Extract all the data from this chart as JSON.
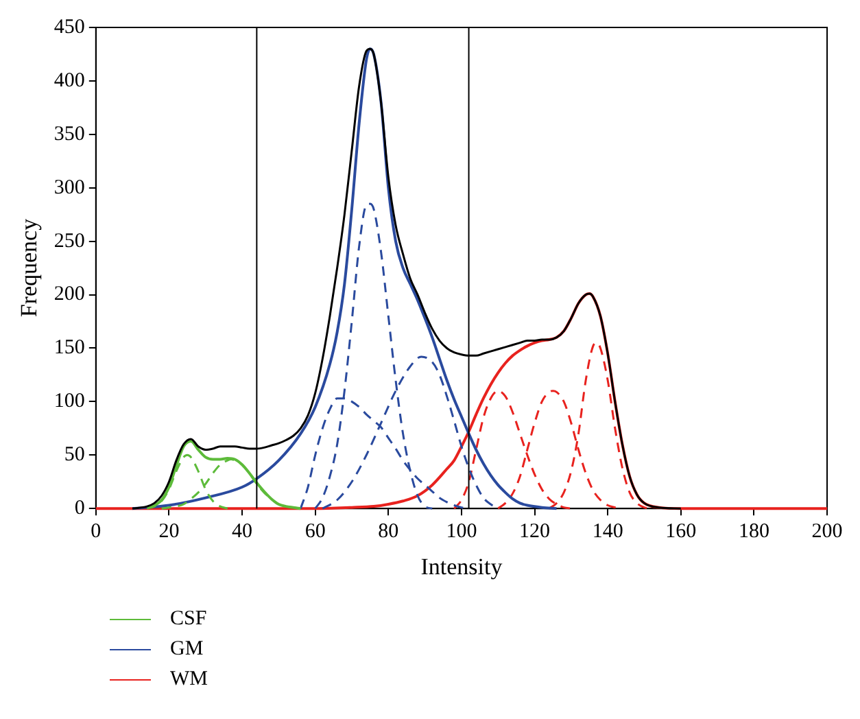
{
  "chart_data": {
    "type": "line",
    "xlabel": "Intensity",
    "ylabel": "Frequency",
    "xlim": [
      0,
      200
    ],
    "xticks": [
      0,
      20,
      40,
      60,
      80,
      100,
      120,
      140,
      160,
      180,
      200
    ],
    "ylim": [
      0,
      450
    ],
    "yticks": [
      0,
      50,
      100,
      150,
      200,
      250,
      300,
      350,
      400,
      450
    ],
    "grid": false,
    "legend": "bottom left",
    "marker": "none",
    "ref_lines": [
      {
        "axis": "x",
        "value": 44,
        "color": "#000000"
      },
      {
        "axis": "x",
        "value": 102,
        "color": "#000000"
      }
    ],
    "series": [
      {
        "color": "#000000",
        "line_style": "solid",
        "x": [
          10,
          14,
          16,
          18,
          20,
          22,
          24,
          26,
          28,
          30,
          32,
          34,
          36,
          38,
          40,
          42,
          44,
          46,
          48,
          50,
          52,
          54,
          56,
          58,
          60,
          62,
          64,
          66,
          68,
          70,
          72,
          74,
          75,
          76,
          78,
          80,
          82,
          84,
          86,
          88,
          90,
          92,
          94,
          96,
          98,
          100,
          102,
          104,
          106,
          108,
          110,
          112,
          114,
          116,
          118,
          120,
          122,
          124,
          126,
          128,
          130,
          132,
          134,
          135,
          136,
          138,
          140,
          142,
          144,
          146,
          148,
          150,
          154,
          160
        ],
        "values": [
          0,
          2,
          5,
          12,
          25,
          45,
          60,
          65,
          58,
          55,
          56,
          58,
          58,
          58,
          57,
          56,
          56,
          57,
          59,
          61,
          64,
          68,
          75,
          87,
          108,
          140,
          180,
          225,
          275,
          335,
          395,
          428,
          430,
          425,
          380,
          310,
          265,
          238,
          215,
          200,
          183,
          168,
          157,
          150,
          146,
          144,
          143,
          143,
          145,
          147,
          149,
          151,
          153,
          155,
          157,
          157,
          158,
          158,
          160,
          166,
          178,
          192,
          200,
          201,
          198,
          180,
          145,
          100,
          60,
          30,
          13,
          5,
          1,
          0
        ]
      },
      {
        "name": "CSF",
        "color": "#5dbb3a",
        "line_style": "solid",
        "x": [
          14,
          16,
          18,
          20,
          22,
          24,
          26,
          28,
          30,
          32,
          34,
          36,
          38,
          40,
          42,
          44,
          46,
          48,
          50,
          52,
          54,
          56
        ],
        "values": [
          1,
          3,
          8,
          20,
          40,
          58,
          63,
          55,
          48,
          46,
          46,
          47,
          46,
          41,
          33,
          24,
          16,
          9,
          4,
          2,
          1,
          0
        ]
      },
      {
        "color": "#5dbb3a",
        "line_style": "dashed",
        "x": [
          14,
          16,
          18,
          20,
          22,
          24,
          25,
          26,
          28,
          30,
          32,
          34,
          36
        ],
        "values": [
          0,
          2,
          7,
          18,
          35,
          48,
          50,
          48,
          35,
          18,
          7,
          2,
          0
        ]
      },
      {
        "color": "#5dbb3a",
        "line_style": "dashed",
        "x": [
          18,
          20,
          22,
          24,
          26,
          28,
          30,
          32,
          34,
          36,
          37,
          38,
          40,
          42,
          44,
          46,
          48,
          50,
          52,
          54,
          56
        ],
        "values": [
          0,
          1,
          2,
          4,
          9,
          15,
          23,
          33,
          41,
          45,
          46,
          45,
          41,
          33,
          23,
          15,
          9,
          4,
          2,
          1,
          0
        ]
      },
      {
        "name": "GM",
        "color": "#2a4a9e",
        "line_style": "solid",
        "x": [
          10,
          20,
          30,
          40,
          44,
          50,
          56,
          60,
          64,
          66,
          68,
          70,
          72,
          74,
          75,
          76,
          78,
          80,
          82,
          84,
          86,
          88,
          90,
          92,
          94,
          96,
          98,
          100,
          102,
          104,
          106,
          108,
          110,
          112,
          114,
          116,
          118,
          122,
          126
        ],
        "values": [
          0,
          3,
          10,
          20,
          28,
          45,
          70,
          95,
          135,
          165,
          210,
          280,
          360,
          420,
          430,
          425,
          380,
          300,
          250,
          225,
          210,
          195,
          178,
          160,
          140,
          120,
          102,
          86,
          70,
          55,
          42,
          31,
          22,
          15,
          9,
          5,
          3,
          1,
          0
        ]
      },
      {
        "color": "#2a4a9e",
        "line_style": "dashed",
        "x": [
          56,
          58,
          60,
          62,
          64,
          66,
          68,
          70,
          72,
          74,
          76,
          78,
          80,
          82,
          84,
          86,
          88,
          90,
          92,
          94,
          96,
          98,
          100,
          102
        ],
        "values": [
          0,
          20,
          50,
          75,
          93,
          103,
          103,
          100,
          95,
          88,
          82,
          76,
          66,
          56,
          45,
          36,
          28,
          22,
          16,
          10,
          6,
          3,
          1,
          0
        ]
      },
      {
        "color": "#2a4a9e",
        "line_style": "dashed",
        "x": [
          60,
          62,
          64,
          66,
          68,
          70,
          72,
          74,
          75,
          76,
          78,
          80,
          82,
          84,
          86,
          88,
          90,
          92
        ],
        "values": [
          0,
          10,
          30,
          60,
          110,
          175,
          245,
          284,
          285,
          280,
          240,
          180,
          120,
          70,
          35,
          12,
          2,
          0
        ]
      },
      {
        "color": "#2a4a9e",
        "line_style": "dashed",
        "x": [
          62,
          66,
          70,
          74,
          78,
          82,
          86,
          89,
          92,
          94,
          96,
          98,
          100,
          102,
          104,
          106,
          108,
          110
        ],
        "values": [
          0,
          8,
          25,
          50,
          80,
          110,
          133,
          142,
          137,
          125,
          105,
          82,
          58,
          38,
          22,
          10,
          4,
          0
        ]
      },
      {
        "name": "WM",
        "color": "#e8221e",
        "line_style": "solid",
        "x": [
          0,
          60,
          70,
          76,
          80,
          84,
          88,
          92,
          96,
          98,
          100,
          102,
          104,
          106,
          108,
          110,
          112,
          114,
          116,
          118,
          120,
          122,
          124,
          126,
          128,
          130,
          132,
          134,
          135,
          136,
          138,
          140,
          142,
          144,
          146,
          148,
          150,
          154,
          160,
          200
        ],
        "values": [
          0,
          0,
          1,
          2,
          4,
          7,
          12,
          22,
          37,
          45,
          58,
          72,
          88,
          103,
          116,
          127,
          136,
          143,
          148,
          152,
          155,
          157,
          158,
          160,
          166,
          178,
          192,
          200,
          201,
          198,
          180,
          145,
          100,
          60,
          30,
          13,
          5,
          1,
          0,
          0
        ]
      },
      {
        "color": "#e8221e",
        "line_style": "dashed",
        "x": [
          98,
          100,
          102,
          104,
          106,
          108,
          110,
          112,
          114,
          116,
          118,
          120,
          122,
          124,
          126,
          128,
          130
        ],
        "values": [
          0,
          8,
          25,
          55,
          85,
          103,
          110,
          105,
          90,
          70,
          50,
          32,
          18,
          9,
          4,
          1,
          0
        ]
      },
      {
        "color": "#e8221e",
        "line_style": "dashed",
        "x": [
          110,
          112,
          114,
          116,
          118,
          120,
          122,
          124,
          125,
          126,
          128,
          130,
          132,
          134,
          136,
          138,
          140,
          142,
          144
        ],
        "values": [
          0,
          5,
          14,
          30,
          55,
          80,
          100,
          109,
          110,
          109,
          100,
          80,
          55,
          33,
          17,
          8,
          3,
          1,
          0
        ]
      },
      {
        "color": "#e8221e",
        "line_style": "dashed",
        "x": [
          124,
          126,
          128,
          130,
          132,
          134,
          136,
          137,
          138,
          140,
          142,
          144,
          146,
          148,
          150,
          152
        ],
        "values": [
          0,
          5,
          15,
          35,
          70,
          120,
          152,
          155,
          150,
          120,
          75,
          38,
          15,
          5,
          1,
          0
        ]
      }
    ]
  }
}
